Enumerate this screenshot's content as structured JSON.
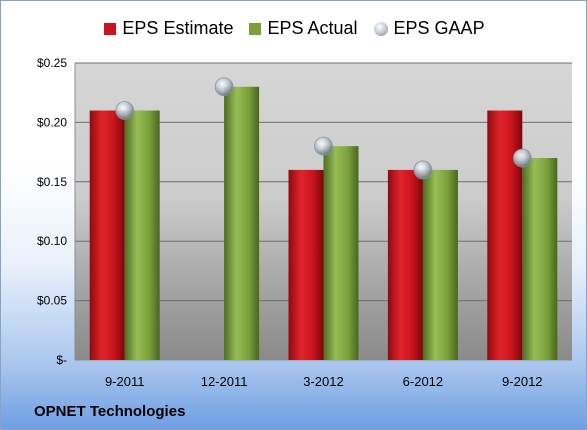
{
  "legend": {
    "estimate": "EPS Estimate",
    "actual": "EPS Actual",
    "gaap": "EPS GAAP"
  },
  "company": "OPNET Technologies",
  "colors": {
    "estimate": "#c8141c",
    "actual": "#7aa03a",
    "gaap": "#b8c0ca",
    "plot_top": "#d4d4d4",
    "plot_bottom": "#8c8c8c"
  },
  "chart_data": {
    "type": "bar",
    "categories": [
      "9-2011",
      "12-2011",
      "3-2012",
      "6-2012",
      "9-2012"
    ],
    "series": [
      {
        "name": "EPS Estimate",
        "values": [
          0.21,
          null,
          0.16,
          0.16,
          0.21
        ]
      },
      {
        "name": "EPS Actual",
        "values": [
          0.21,
          0.23,
          0.18,
          0.16,
          0.17
        ]
      },
      {
        "name": "EPS GAAP",
        "values": [
          0.21,
          0.23,
          0.18,
          0.16,
          0.17
        ],
        "marker": "circle"
      }
    ],
    "y_ticks": [
      0,
      0.05,
      0.1,
      0.15,
      0.2,
      0.25
    ],
    "y_tick_labels": [
      "$-",
      "$0.05",
      "$0.10",
      "$0.15",
      "$0.20",
      "$0.25"
    ],
    "ylim": [
      0,
      0.25
    ],
    "grid": true,
    "legend_position": "top"
  }
}
